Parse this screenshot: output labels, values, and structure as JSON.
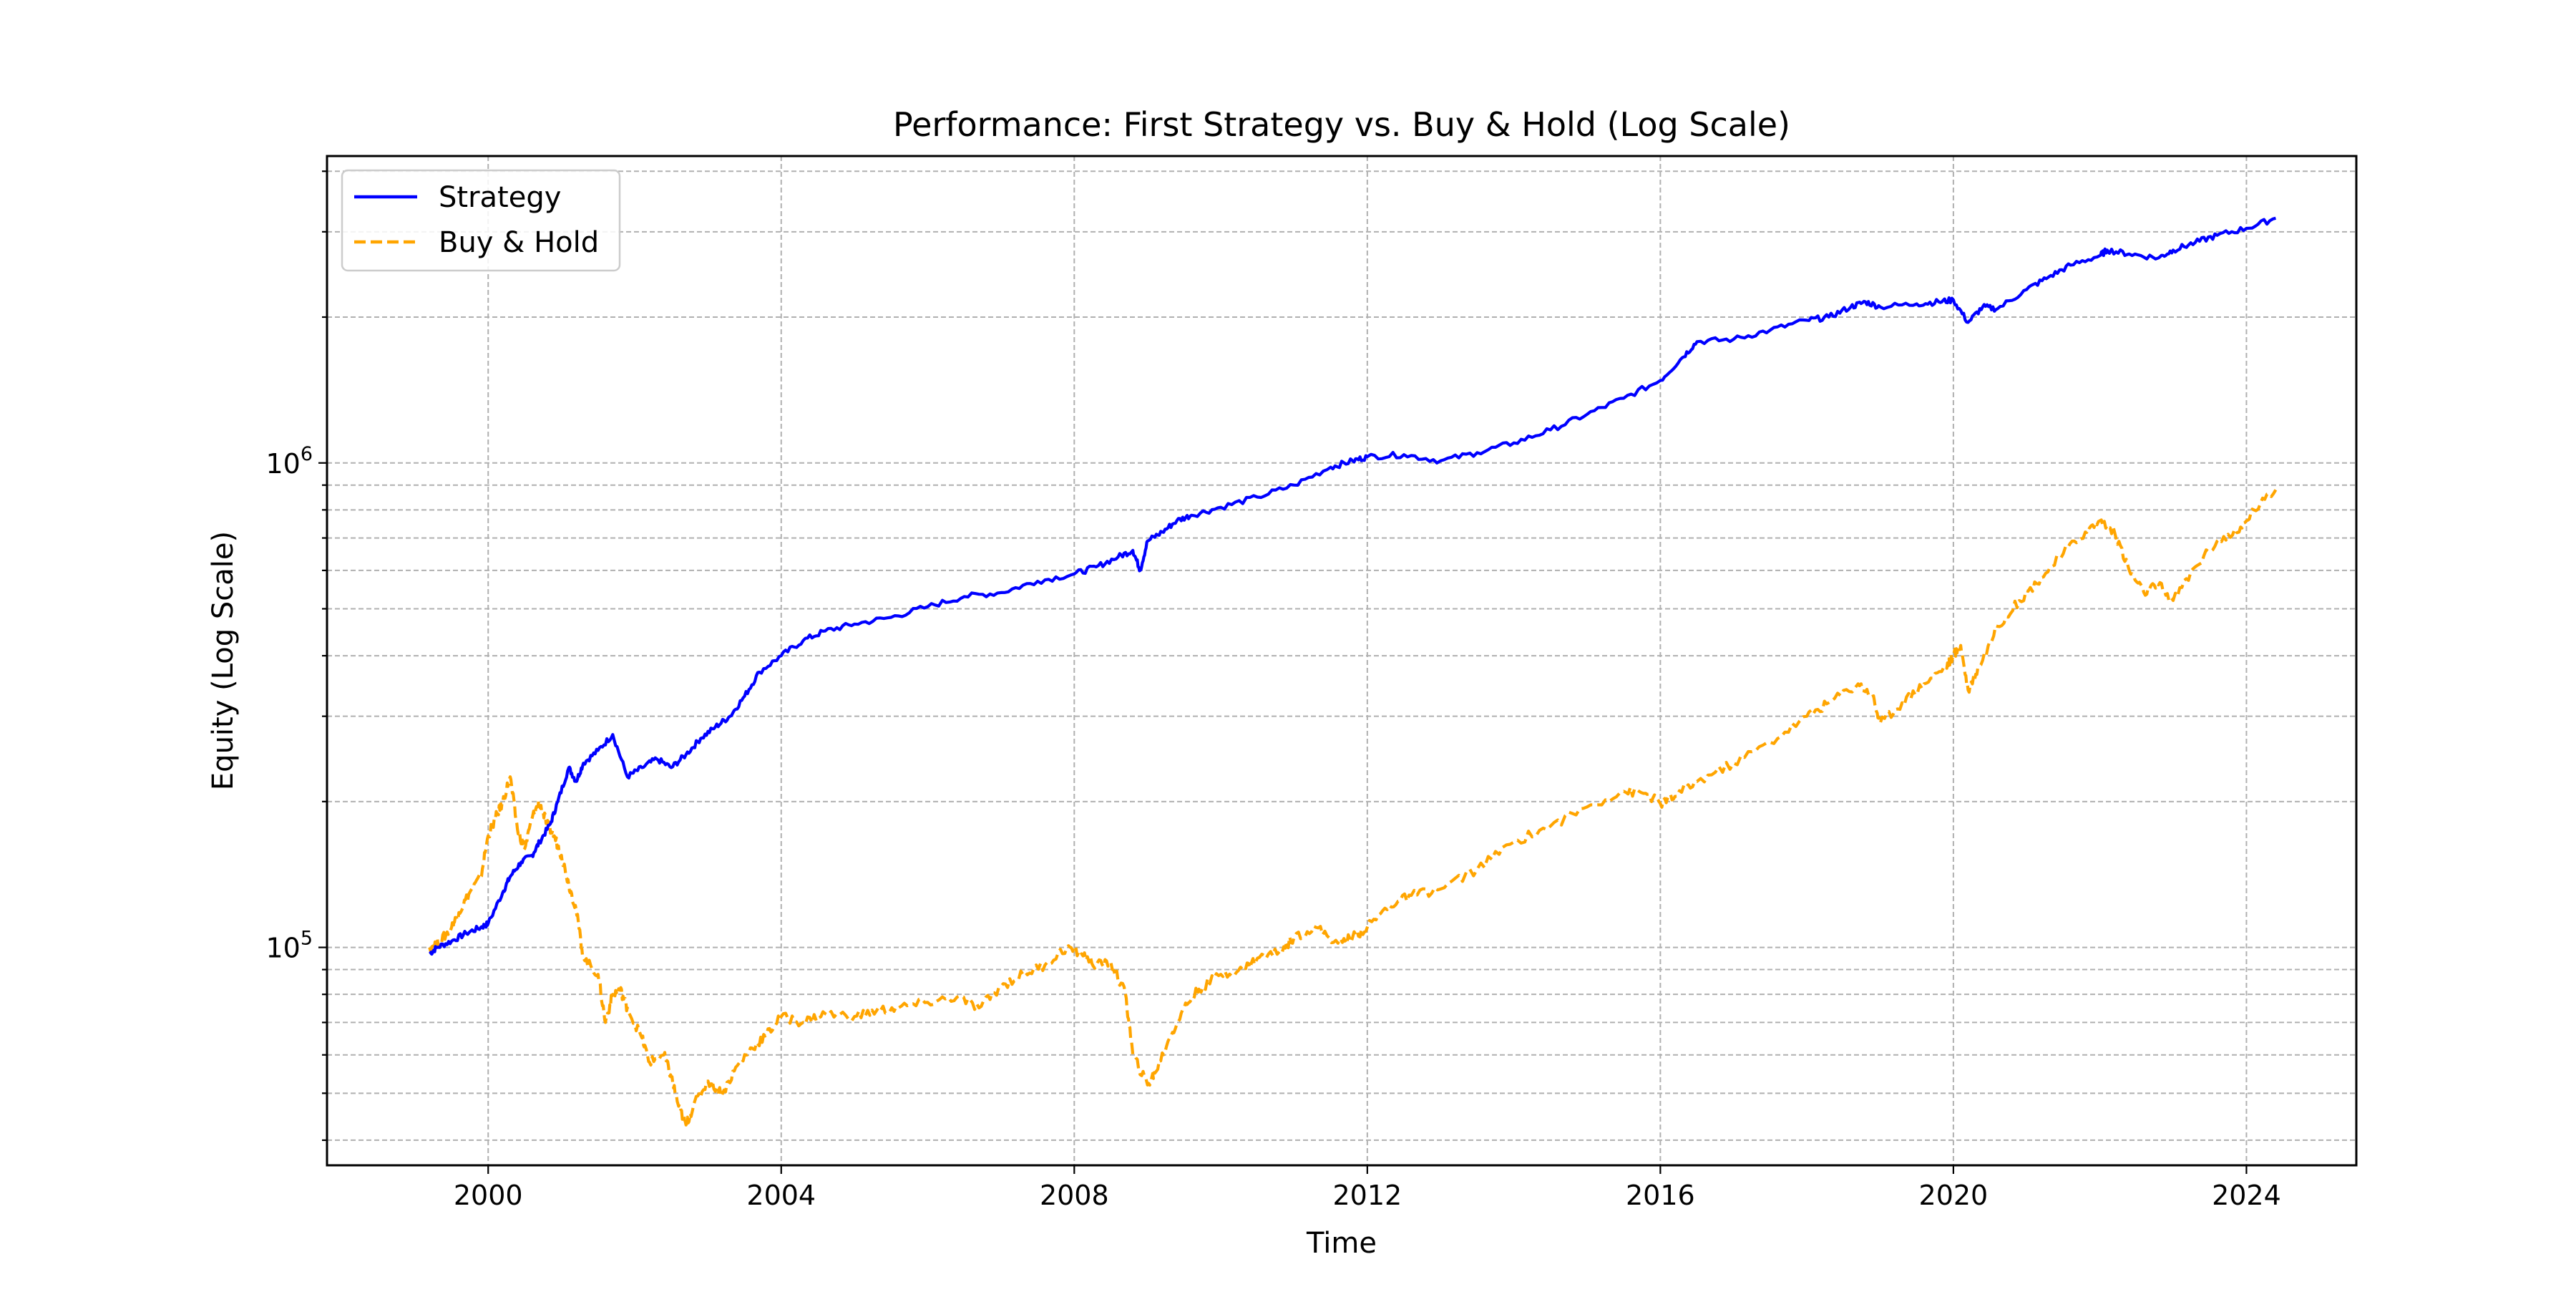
{
  "chart_data": {
    "type": "line",
    "title": "Performance: First Strategy vs. Buy & Hold (Log Scale)",
    "xlabel": "Time",
    "ylabel": "Equity (Log Scale)",
    "y_scale": "log",
    "xlim": [
      1997.8,
      2025.5
    ],
    "ylim": [
      35500,
      4300000
    ],
    "x_ticks": [
      2000,
      2004,
      2008,
      2012,
      2016,
      2020,
      2024
    ],
    "x_tick_labels": [
      "2000",
      "2004",
      "2008",
      "2012",
      "2016",
      "2020",
      "2024"
    ],
    "y_major_ticks": [
      100000,
      1000000
    ],
    "y_tick_labels": [
      {
        "base": "10",
        "exp": "5"
      },
      {
        "base": "10",
        "exp": "6"
      }
    ],
    "y_minor_ticks": [
      40000,
      50000,
      60000,
      70000,
      80000,
      90000,
      200000,
      300000,
      400000,
      500000,
      600000,
      700000,
      800000,
      900000,
      2000000,
      3000000,
      4000000
    ],
    "grid": true,
    "legend_position": "top-left",
    "series": [
      {
        "name": "Strategy",
        "color": "#0000ff",
        "dash": "solid",
        "x": [
          1999.2,
          1999.3,
          1999.5,
          1999.7,
          1999.9,
          2000.0,
          2000.2,
          2000.3,
          2000.45,
          2000.6,
          2000.7,
          2000.85,
          2000.95,
          2001.1,
          2001.2,
          2001.3,
          2001.5,
          2001.7,
          2001.9,
          2002.1,
          2002.3,
          2002.5,
          2002.7,
          2002.9,
          2003.1,
          2003.3,
          2003.5,
          2003.7,
          2004.0,
          2004.3,
          2004.6,
          2005.0,
          2005.5,
          2006.0,
          2006.5,
          2007.0,
          2007.5,
          2008.0,
          2008.3,
          2008.6,
          2008.8,
          2008.9,
          2009.0,
          2009.2,
          2009.4,
          2009.6,
          2010.0,
          2010.5,
          2011.0,
          2011.5,
          2011.8,
          2012.0,
          2012.5,
          2013.0,
          2013.5,
          2014.0,
          2014.5,
          2015.0,
          2015.5,
          2016.0,
          2016.3,
          2016.5,
          2017.0,
          2017.5,
          2018.0,
          2018.3,
          2018.6,
          2018.8,
          2019.0,
          2019.5,
          2019.8,
          2020.0,
          2020.2,
          2020.4,
          2020.6,
          2021.0,
          2021.3,
          2021.6,
          2022.0,
          2022.1,
          2022.4,
          2022.8,
          2023.0,
          2023.3,
          2023.6,
          2024.0,
          2024.4
        ],
        "values": [
          97000,
          100000,
          103000,
          107000,
          110000,
          112000,
          130000,
          140000,
          150000,
          155000,
          165000,
          180000,
          200000,
          235000,
          220000,
          240000,
          255000,
          275000,
          225000,
          235000,
          245000,
          235000,
          250000,
          270000,
          285000,
          300000,
          330000,
          370000,
          400000,
          430000,
          450000,
          465000,
          480000,
          505000,
          530000,
          540000,
          570000,
          590000,
          610000,
          640000,
          660000,
          600000,
          690000,
          720000,
          760000,
          780000,
          810000,
          850000,
          900000,
          980000,
          1010000,
          1030000,
          1040000,
          1010000,
          1050000,
          1100000,
          1170000,
          1260000,
          1360000,
          1480000,
          1650000,
          1780000,
          1800000,
          1880000,
          1970000,
          2000000,
          2100000,
          2150000,
          2100000,
          2130000,
          2150000,
          2170000,
          1950000,
          2100000,
          2080000,
          2280000,
          2420000,
          2560000,
          2680000,
          2750000,
          2700000,
          2650000,
          2750000,
          2850000,
          2950000,
          3050000,
          3200000
        ]
      },
      {
        "name": "Buy & Hold",
        "color": "#ffa500",
        "dash": "dashed",
        "x": [
          1999.2,
          1999.35,
          1999.5,
          1999.6,
          1999.75,
          1999.9,
          2000.0,
          2000.1,
          2000.2,
          2000.3,
          2000.4,
          2000.5,
          2000.6,
          2000.7,
          2000.8,
          2000.9,
          2001.0,
          2001.1,
          2001.2,
          2001.3,
          2001.5,
          2001.6,
          2001.7,
          2001.8,
          2001.9,
          2002.1,
          2002.2,
          2002.4,
          2002.5,
          2002.6,
          2002.7,
          2002.8,
          2003.0,
          2003.2,
          2003.4,
          2003.6,
          2003.8,
          2004.0,
          2004.3,
          2004.6,
          2005.0,
          2005.3,
          2005.6,
          2006.0,
          2006.4,
          2006.7,
          2007.0,
          2007.3,
          2007.6,
          2007.9,
          2008.1,
          2008.3,
          2008.5,
          2008.7,
          2008.8,
          2009.0,
          2009.1,
          2009.3,
          2009.5,
          2009.7,
          2010.0,
          2010.3,
          2010.5,
          2010.8,
          2011.0,
          2011.3,
          2011.6,
          2011.8,
          2012.0,
          2012.3,
          2012.6,
          2013.0,
          2013.5,
          2014.0,
          2014.5,
          2015.0,
          2015.5,
          2015.8,
          2016.0,
          2016.2,
          2016.5,
          2017.0,
          2017.5,
          2018.0,
          2018.3,
          2018.7,
          2018.9,
          2019.0,
          2019.3,
          2019.6,
          2019.9,
          2020.0,
          2020.1,
          2020.2,
          2020.35,
          2020.6,
          2020.9,
          2021.2,
          2021.5,
          2021.8,
          2022.0,
          2022.2,
          2022.4,
          2022.6,
          2022.8,
          2023.0,
          2023.3,
          2023.6,
          2023.9,
          2024.1,
          2024.4
        ],
        "values": [
          100000,
          103000,
          110000,
          118000,
          130000,
          140000,
          170000,
          185000,
          200000,
          225000,
          175000,
          160000,
          185000,
          200000,
          180000,
          170000,
          155000,
          135000,
          120000,
          95000,
          88000,
          70000,
          80000,
          82000,
          75000,
          65000,
          58000,
          60000,
          54000,
          47000,
          43000,
          47000,
          53000,
          50000,
          57000,
          62000,
          66000,
          72000,
          70000,
          73000,
          72000,
          74000,
          75000,
          77000,
          79000,
          75000,
          83000,
          88000,
          92000,
          100000,
          97000,
          92000,
          93000,
          80000,
          60000,
          52000,
          55000,
          65000,
          75000,
          82000,
          88000,
          90000,
          95000,
          98000,
          105000,
          110000,
          102000,
          105000,
          110000,
          122000,
          128000,
          132000,
          145000,
          165000,
          178000,
          195000,
          210000,
          208000,
          198000,
          205000,
          220000,
          240000,
          265000,
          300000,
          320000,
          350000,
          330000,
          290000,
          320000,
          350000,
          380000,
          400000,
          420000,
          340000,
          380000,
          460000,
          520000,
          580000,
          650000,
          720000,
          760000,
          720000,
          600000,
          540000,
          560000,
          520000,
          610000,
          690000,
          720000,
          800000,
          880000
        ]
      }
    ]
  }
}
